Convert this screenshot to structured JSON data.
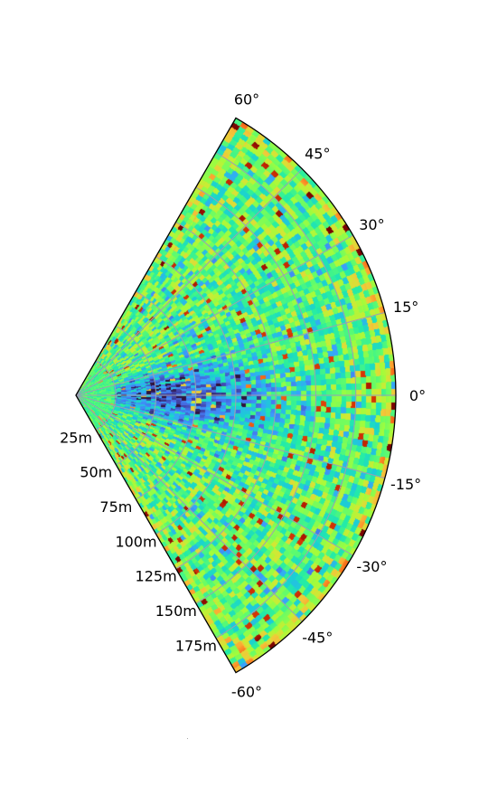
{
  "chart_data": {
    "type": "heatmap",
    "projection": "polar",
    "title": "",
    "xlabel": "",
    "ylabel": "",
    "theta_range_deg": [
      -60,
      60
    ],
    "r_range_m": [
      0,
      200
    ],
    "angle_ticks": [
      {
        "value": 60,
        "label": "60°"
      },
      {
        "value": 45,
        "label": "45°"
      },
      {
        "value": 30,
        "label": "30°"
      },
      {
        "value": 15,
        "label": "15°"
      },
      {
        "value": 0,
        "label": "0°"
      },
      {
        "value": -15,
        "label": "-15°"
      },
      {
        "value": -30,
        "label": "-30°"
      },
      {
        "value": -45,
        "label": "-45°"
      },
      {
        "value": -60,
        "label": "-60°"
      }
    ],
    "range_ticks": [
      {
        "value": 25,
        "label": "25m"
      },
      {
        "value": 50,
        "label": "50m"
      },
      {
        "value": 75,
        "label": "75m"
      },
      {
        "value": 100,
        "label": "100m"
      },
      {
        "value": 125,
        "label": "125m"
      },
      {
        "value": 150,
        "label": "150m"
      },
      {
        "value": 175,
        "label": "175m"
      }
    ],
    "colormap": [
      "#30123b",
      "#4145ab",
      "#4675ed",
      "#39a2fc",
      "#1bcfd4",
      "#24eca6",
      "#61fc6c",
      "#a4fc3b",
      "#d1e834",
      "#f3c63a",
      "#fe9b2d",
      "#f36315",
      "#d93806",
      "#b11901",
      "#7a0402"
    ],
    "grid": true,
    "grid_color": "#9aa0b4",
    "frame_color": "#000000",
    "legend": "none",
    "field_bins": {
      "angular": 96,
      "radial": 64
    }
  }
}
